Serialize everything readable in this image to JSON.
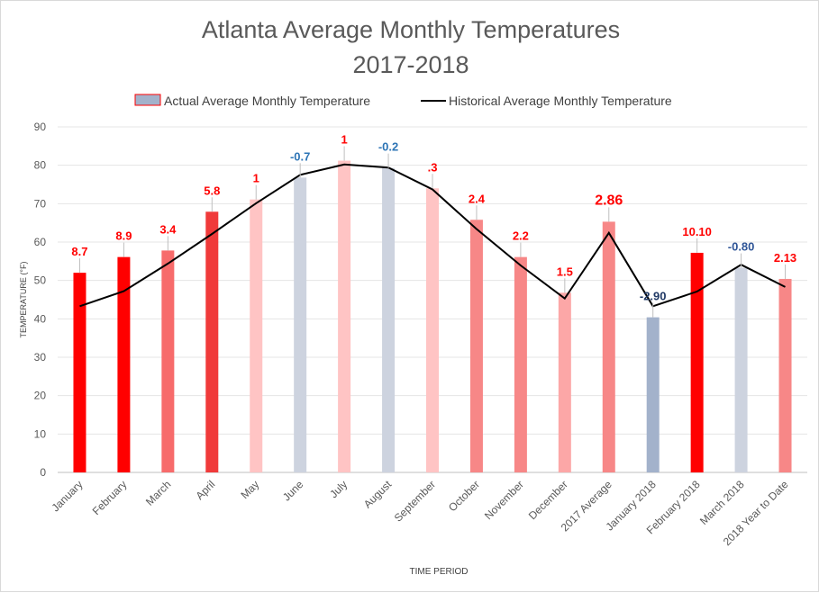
{
  "chart_data": {
    "type": "bar",
    "title_line1": "Atlanta Average Monthly Temperatures",
    "title_line2": "2017-2018",
    "xlabel": "TIME PERIOD",
    "ylabel": "TEMPERATURE (°F)",
    "ylim": [
      0,
      90
    ],
    "yticks": [
      0,
      10,
      20,
      30,
      40,
      50,
      60,
      70,
      80,
      90
    ],
    "grid": true,
    "legend_position": "top",
    "categories": [
      "January",
      "February",
      "March",
      "April",
      "May",
      "June",
      "July",
      "August",
      "September",
      "October",
      "November",
      "December",
      "2017 Average",
      "January 2018",
      "February 2018",
      "March 2018",
      "2018 Year to Date"
    ],
    "series": [
      {
        "name": "Actual Average Monthly Temperature",
        "kind": "bar",
        "values": [
          52.0,
          56.1,
          57.8,
          67.9,
          71.1,
          76.8,
          81.2,
          79.3,
          74.0,
          65.8,
          56.1,
          46.8,
          65.3,
          40.4,
          57.2,
          53.3,
          50.4
        ],
        "bar_colors": [
          "#ff0000",
          "#ff0000",
          "#f76b6b",
          "#f03a3a",
          "#ffc4c4",
          "#cdd3df",
          "#ffc4c4",
          "#cdd3df",
          "#ffc4c4",
          "#f78787",
          "#f78787",
          "#fca7a7",
          "#f78787",
          "#a3b2cb",
          "#ff0000",
          "#cdd3df",
          "#f78787"
        ]
      },
      {
        "name": "Historical Average Monthly Temperature",
        "kind": "line",
        "color": "#000000",
        "values": [
          43.3,
          47.2,
          54.4,
          62.1,
          70.1,
          77.5,
          80.2,
          79.4,
          73.7,
          63.4,
          53.9,
          45.3,
          62.4,
          43.3,
          47.1,
          54.1,
          48.3
        ]
      }
    ],
    "data_labels": [
      {
        "text": "8.7",
        "color": "#ff0000",
        "big": false
      },
      {
        "text": "8.9",
        "color": "#ff0000",
        "big": false
      },
      {
        "text": "3.4",
        "color": "#ff0000",
        "big": false
      },
      {
        "text": "5.8",
        "color": "#ff0000",
        "big": false
      },
      {
        "text": "1",
        "color": "#ff0000",
        "big": false
      },
      {
        "text": "-0.7",
        "color": "#2e75b6",
        "big": false
      },
      {
        "text": "1",
        "color": "#ff0000",
        "big": false
      },
      {
        "text": "-0.2",
        "color": "#2e75b6",
        "big": false
      },
      {
        "text": ".3",
        "color": "#ff0000",
        "big": false
      },
      {
        "text": "2.4",
        "color": "#ff0000",
        "big": false
      },
      {
        "text": "2.2",
        "color": "#ff0000",
        "big": false
      },
      {
        "text": "1.5",
        "color": "#ff0000",
        "big": false
      },
      {
        "text": "2.86",
        "color": "#ff0000",
        "big": true
      },
      {
        "text": "-2.90",
        "color": "#1f3864",
        "big": false
      },
      {
        "text": "10.10",
        "color": "#ff0000",
        "big": false
      },
      {
        "text": "-0.80",
        "color": "#2f5597",
        "big": false
      },
      {
        "text": "2.13",
        "color": "#ff0000",
        "big": false
      }
    ]
  }
}
